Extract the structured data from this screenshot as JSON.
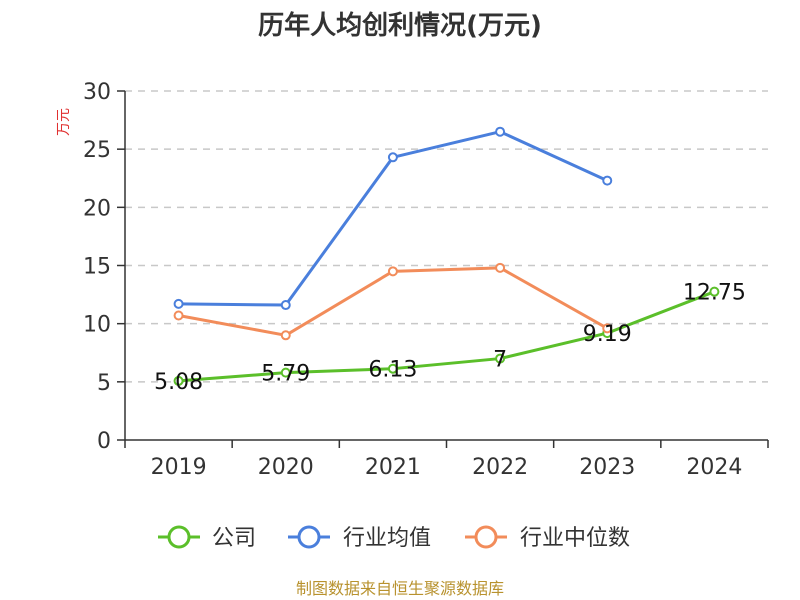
{
  "chart_data": {
    "type": "line",
    "title": "历年人均创利情况(万元)",
    "ylabel": "万元",
    "xlabel": "",
    "categories": [
      "2019",
      "2020",
      "2021",
      "2022",
      "2023",
      "2024"
    ],
    "ylim": [
      0,
      30
    ],
    "yticks": [
      0,
      5,
      10,
      15,
      20,
      25,
      30
    ],
    "grid": true,
    "legend_position": "bottom",
    "series": [
      {
        "name": "公司",
        "color": "#5bbf2a",
        "values": [
          5.08,
          5.79,
          6.13,
          7,
          9.19,
          12.75
        ],
        "labels": [
          "5.08",
          "5.79",
          "6.13",
          "7",
          "9.19",
          "12.75"
        ]
      },
      {
        "name": "行业均值",
        "color": "#4a7fdc",
        "values": [
          11.7,
          11.6,
          24.3,
          26.5,
          22.3,
          null
        ]
      },
      {
        "name": "行业中位数",
        "color": "#f28c5a",
        "values": [
          10.7,
          9.0,
          14.5,
          14.8,
          9.6,
          null
        ]
      }
    ]
  },
  "source": "制图数据来自恒生聚源数据库"
}
